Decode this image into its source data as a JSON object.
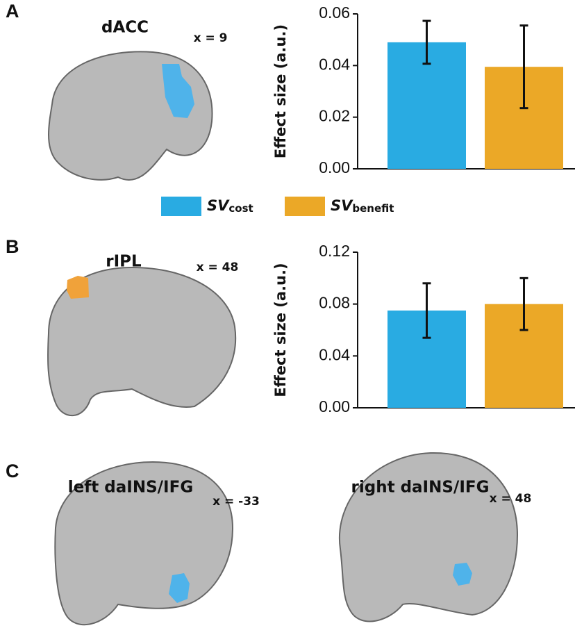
{
  "figure": {
    "panels": [
      "A",
      "B",
      "C"
    ],
    "regions": [
      "dACC",
      "rIPL",
      "left daINS/IFG",
      "right daINS/IFG"
    ],
    "coords": [
      "x = 9",
      "x = 48",
      "x = -33",
      "x = 48"
    ],
    "legend": [
      {
        "symbol": "SV",
        "subscript": "cost",
        "color": "#29abe2"
      },
      {
        "symbol": "SV",
        "subscript": "benefit",
        "color": "#eba827"
      }
    ]
  },
  "chart_data": [
    {
      "type": "bar",
      "y_label": "Effect size (a.u.)",
      "ylim": [
        0,
        0.06
      ],
      "yticks": [
        {
          "value": 0,
          "label": "0.00"
        },
        0.02,
        0.04,
        0.06
      ],
      "series": [
        {
          "color": "#29abe2",
          "values": [
            0.049
          ],
          "errors": [
            0.0083
          ]
        },
        {
          "color": "#eba827",
          "values": [
            0.0395
          ],
          "errors": [
            0.016
          ]
        }
      ]
    },
    {
      "type": "bar",
      "y_label": "Effect size (a.u.)",
      "ylim": [
        0,
        0.12
      ],
      "yticks": [
        {
          "value": 0,
          "label": "0.00"
        },
        0.04,
        0.08,
        0.12
      ],
      "series": [
        {
          "color": "#29abe2",
          "values": [
            0.075
          ],
          "errors": [
            0.021
          ]
        },
        {
          "color": "#eba827",
          "values": [
            0.08
          ],
          "errors": [
            0.02
          ]
        }
      ]
    }
  ]
}
